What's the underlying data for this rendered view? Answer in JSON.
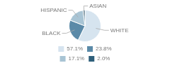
{
  "chart_data": {
    "type": "pie",
    "categories": [
      "WHITE",
      "BLACK",
      "HISPANIC",
      "ASIAN"
    ],
    "values": [
      57.1,
      23.8,
      17.1,
      2.0
    ],
    "value_labels": [
      "57.1%",
      "23.8%",
      "17.1%",
      "2.0%"
    ],
    "colors": [
      "#d6e4ef",
      "#5b8aa8",
      "#a8c4d4",
      "#2e5f7a"
    ],
    "legend": "bottom"
  }
}
